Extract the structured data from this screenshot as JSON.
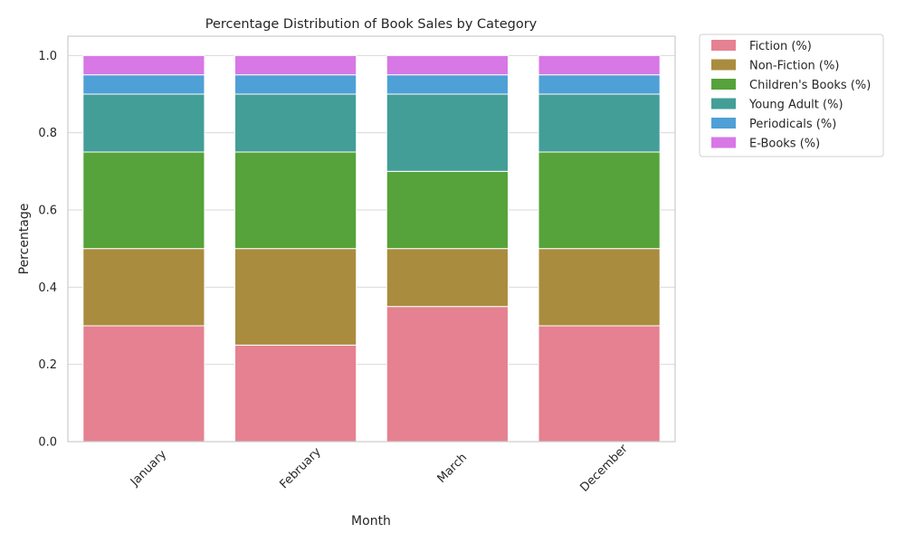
{
  "chart_data": {
    "type": "bar",
    "stacked": true,
    "title": "Percentage Distribution of Book Sales by Category",
    "xlabel": "Month",
    "ylabel": "Percentage",
    "ylim": [
      0,
      1.05
    ],
    "yticks": [
      "0.0",
      "0.2",
      "0.4",
      "0.6",
      "0.8",
      "1.0"
    ],
    "categories": [
      "January",
      "February",
      "March",
      "December"
    ],
    "grid": true,
    "legend_position": "outside-top-right",
    "series": [
      {
        "name": "Fiction (%)",
        "color": "#e58190",
        "values": [
          0.3,
          0.25,
          0.35,
          0.3
        ]
      },
      {
        "name": "Non-Fiction (%)",
        "color": "#a98c3e",
        "values": [
          0.2,
          0.25,
          0.15,
          0.2
        ]
      },
      {
        "name": "Children's Books (%)",
        "color": "#55a33a",
        "values": [
          0.25,
          0.25,
          0.2,
          0.25
        ]
      },
      {
        "name": "Young Adult (%)",
        "color": "#439e98",
        "values": [
          0.15,
          0.15,
          0.2,
          0.15
        ]
      },
      {
        "name": "Periodicals (%)",
        "color": "#4fa0d6",
        "values": [
          0.05,
          0.05,
          0.05,
          0.05
        ]
      },
      {
        "name": "E-Books (%)",
        "color": "#d877e6",
        "values": [
          0.05,
          0.05,
          0.05,
          0.05
        ]
      }
    ]
  }
}
